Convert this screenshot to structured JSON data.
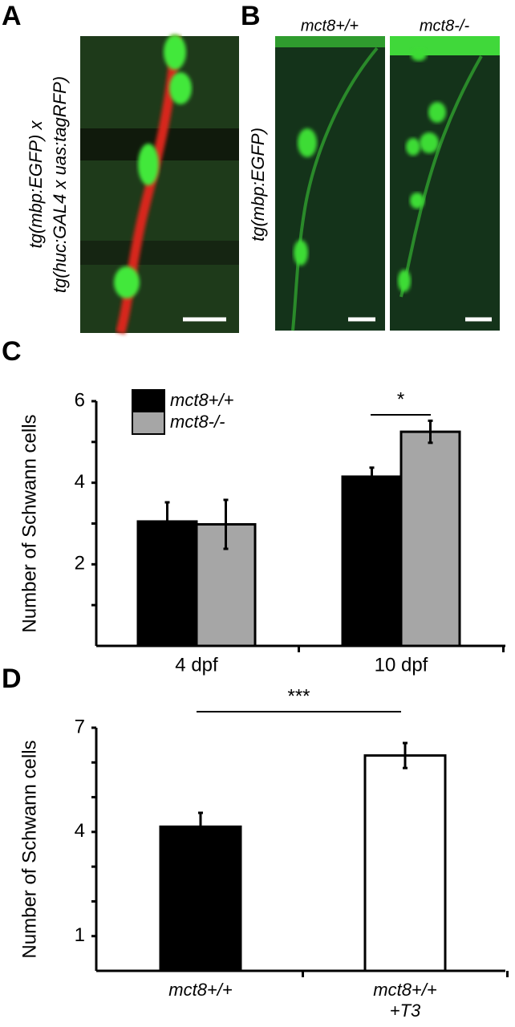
{
  "panels": {
    "A": {
      "label": "A",
      "caption": [
        "tg(mbp:EGFP) x",
        "tg(huc:GAL4 x uas:tagRFP)"
      ]
    },
    "B": {
      "label": "B",
      "columns": [
        "mct8+/+",
        "mct8-/-"
      ],
      "caption": "tg(mbp:EGFP)"
    }
  },
  "chart_data": [
    {
      "type": "bar",
      "label": "C",
      "y_label": "Number of Schwann cells",
      "categories": [
        "4 dpf",
        "10 dpf"
      ],
      "series": [
        {
          "name": "mct8+/+",
          "color": "#000000",
          "values": [
            3.05,
            4.15
          ],
          "errors": [
            0.47,
            0.22
          ]
        },
        {
          "name": "mct8-/-",
          "color": "#a6a6a6",
          "values": [
            2.98,
            5.25
          ],
          "errors": [
            0.6,
            0.27
          ]
        }
      ],
      "ylim": [
        0,
        6
      ],
      "yticks": [
        2,
        4,
        6
      ],
      "minor_yticks": [
        1,
        3,
        5
      ],
      "legend": "top-left",
      "significance": "*"
    },
    {
      "type": "bar",
      "label": "D",
      "y_label": "Number of Schwann cells",
      "categories": [
        [
          "mct8+/+"
        ],
        [
          "mct8+/+",
          "+T3"
        ]
      ],
      "series": [
        {
          "colors": [
            "#000000",
            "#ffffff"
          ],
          "values": [
            4.15,
            6.2
          ],
          "errors": [
            0.4,
            0.36
          ]
        }
      ],
      "ylim": [
        0,
        7
      ],
      "yticks": [
        1,
        4,
        7
      ],
      "minor_yticks": [
        2,
        3,
        5,
        6
      ],
      "significance": "***"
    }
  ]
}
